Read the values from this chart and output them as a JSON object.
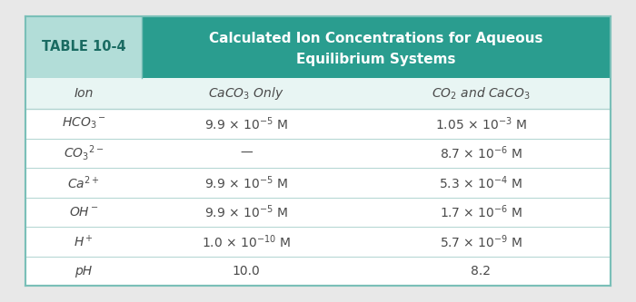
{
  "table_label": "TABLE 10-4",
  "title_line1": "Calculated Ion Concentrations for Aqueous",
  "title_line2": "Equilibrium Systems",
  "header_teal": "#2a9d8f",
  "header_teal_dark": "#248f82",
  "label_bg": "#b2ddd8",
  "col_header_bg": "#e8f5f3",
  "white": "#ffffff",
  "border_color": "#7abfb8",
  "separator_color": "#b0d4d0",
  "text_dark": "#4a4a4a",
  "text_teal_label": "#1a6b62",
  "text_white": "#ffffff",
  "bg_outer": "#e8e8e8",
  "col_headers_math": [
    "Ion",
    "CaCO$_3$ Only",
    "CO$_2$ and CaCO$_3$"
  ],
  "ions_math": [
    "HCO$_3$$^-$",
    "CO$_3$$^{2-}$",
    "Ca$^{2+}$",
    "OH$^-$",
    "H$^+$",
    "pH"
  ],
  "col1_math": [
    "9.9 $\\times$ 10$^{-5}$ M",
    "—",
    "9.9 $\\times$ 10$^{-5}$ M",
    "9.9 $\\times$ 10$^{-5}$ M",
    "1.0 $\\times$ 10$^{-10}$ M",
    "10.0"
  ],
  "col2_math": [
    "1.05 $\\times$ 10$^{-3}$ M",
    "8.7 $\\times$ 10$^{-6}$ M",
    "5.3 $\\times$ 10$^{-4}$ M",
    "1.7 $\\times$ 10$^{-6}$ M",
    "5.7 $\\times$ 10$^{-9}$ M",
    "8.2"
  ]
}
